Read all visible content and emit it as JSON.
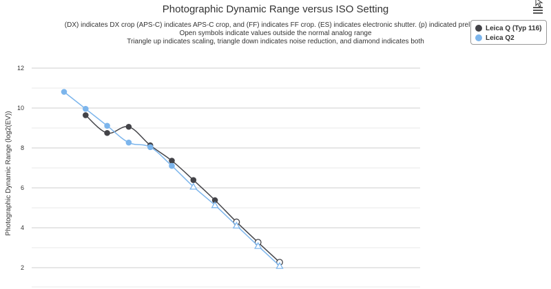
{
  "chart_data": {
    "type": "line",
    "title": "Photographic Dynamic Range versus ISO Setting",
    "subtitle_lines": [
      "(DX) indicates DX crop (APS-C) indicates APS-C crop, and (FF) indicates FF crop. (ES) indicates electronic shutter. (p) indicated prelimina",
      "Open symbols indicate values outside the normal analog range",
      "Triangle up indicates scaling, triangle down indicates noise reduction, and diamond indicates both"
    ],
    "ylabel": "Photographic Dynamic Range (log2(EV))",
    "xlabel": "",
    "ylim": [
      1.5,
      12.6
    ],
    "xlim": [
      0,
      1
    ],
    "y_ticks": [
      "2",
      "4",
      "6",
      "8",
      "10",
      "12"
    ],
    "x_log2_iso": true,
    "grid": true,
    "legend_position": "top-right",
    "series": [
      {
        "name": "Leica Q (Typ 116)",
        "color": "#434348",
        "points": [
          {
            "x": 6.64,
            "y": 9.64,
            "marker": "circle"
          },
          {
            "x": 7.64,
            "y": 8.75,
            "marker": "circle"
          },
          {
            "x": 8.64,
            "y": 9.06,
            "marker": "circle"
          },
          {
            "x": 9.64,
            "y": 8.13,
            "marker": "circle"
          },
          {
            "x": 10.64,
            "y": 7.36,
            "marker": "circle"
          },
          {
            "x": 11.64,
            "y": 6.39,
            "marker": "circle"
          },
          {
            "x": 12.64,
            "y": 5.38,
            "marker": "circle"
          },
          {
            "x": 13.64,
            "y": 4.29,
            "marker": "circle-open"
          },
          {
            "x": 14.64,
            "y": 3.27,
            "marker": "circle-open"
          },
          {
            "x": 15.64,
            "y": 2.27,
            "marker": "circle-open"
          }
        ]
      },
      {
        "name": "Leica Q2",
        "color": "#7cb5ec",
        "points": [
          {
            "x": 5.64,
            "y": 10.81,
            "marker": "circle"
          },
          {
            "x": 6.64,
            "y": 9.96,
            "marker": "circle"
          },
          {
            "x": 7.64,
            "y": 9.11,
            "marker": "circle"
          },
          {
            "x": 8.64,
            "y": 8.27,
            "marker": "circle"
          },
          {
            "x": 9.64,
            "y": 8.04,
            "marker": "circle"
          },
          {
            "x": 10.64,
            "y": 7.1,
            "marker": "circle"
          },
          {
            "x": 11.64,
            "y": 6.06,
            "marker": "triangle-open"
          },
          {
            "x": 12.64,
            "y": 5.13,
            "marker": "triangle-open"
          },
          {
            "x": 13.64,
            "y": 4.11,
            "marker": "triangle-open"
          },
          {
            "x": 14.64,
            "y": 3.09,
            "marker": "triangle-open"
          },
          {
            "x": 15.64,
            "y": 2.09,
            "marker": "triangle-open"
          }
        ]
      }
    ]
  },
  "legend": {
    "items": [
      {
        "label": "Leica Q (Typ 116)",
        "color": "#434348"
      },
      {
        "label": "Leica Q2",
        "color": "#7cb5ec"
      }
    ]
  },
  "icons": {
    "menu": "hamburger-menu-icon",
    "cursor": "mouse-cursor-icon"
  }
}
